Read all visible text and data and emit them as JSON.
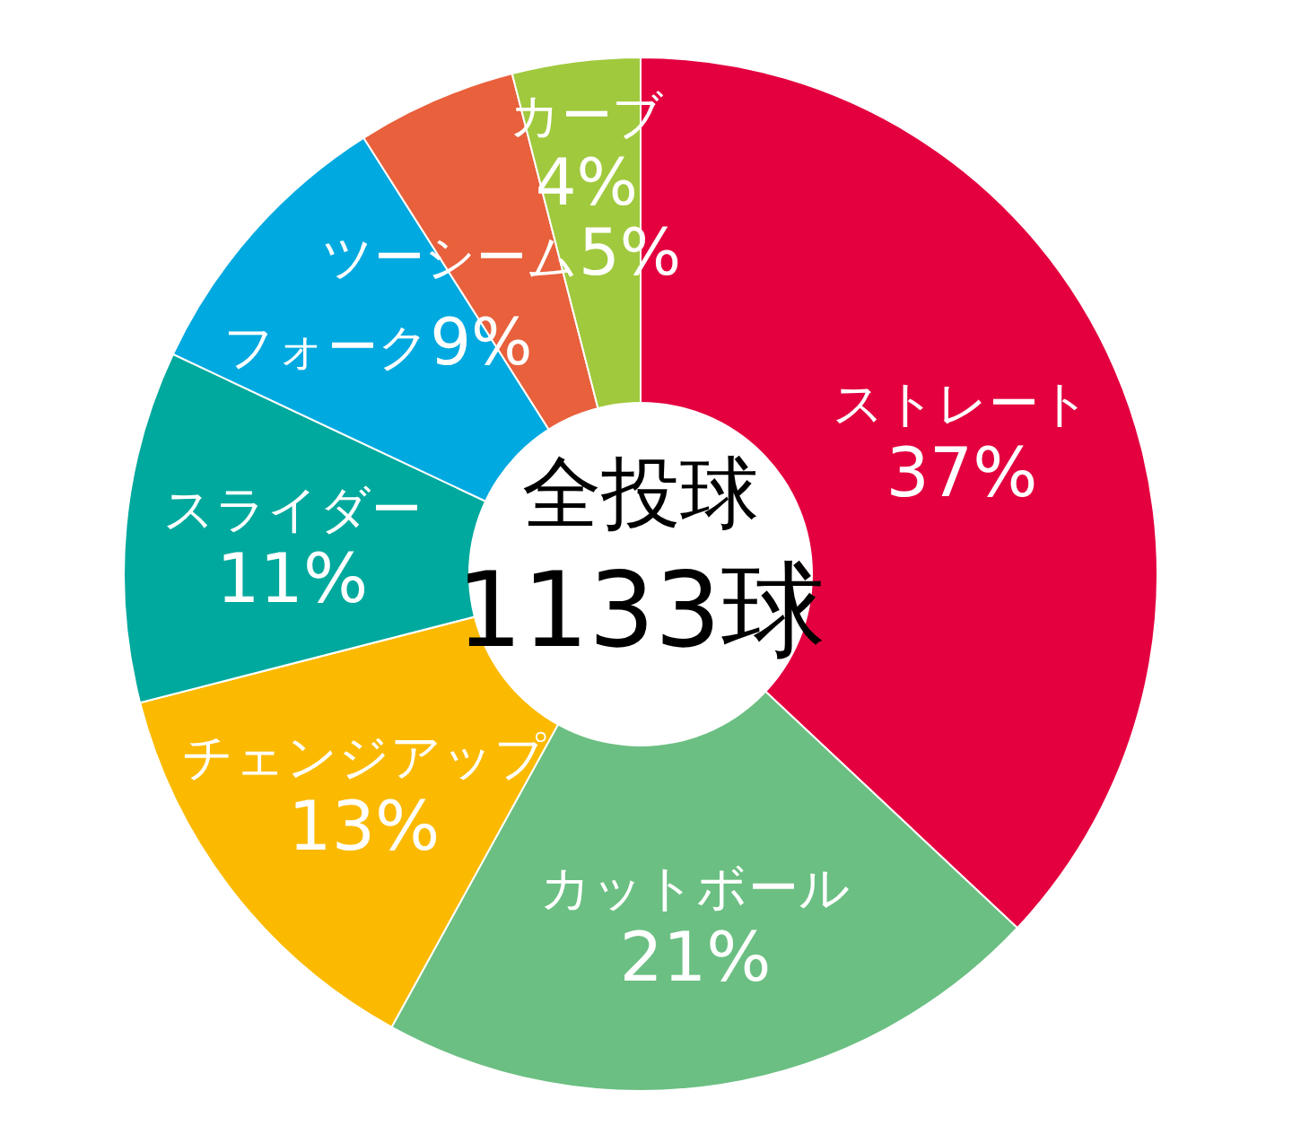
{
  "chart_data": {
    "type": "donut",
    "categories": [
      "ストレート",
      "カットボール",
      "チェンジアップ",
      "スライダー",
      "フォーク",
      "ツーシーム",
      "カーブ"
    ],
    "values": [
      37,
      21,
      13,
      11,
      9,
      5,
      4
    ],
    "value_labels": [
      "37%",
      "21%",
      "13%",
      "11%",
      "9%",
      "5%",
      "4%"
    ],
    "colors": [
      "#e4003f",
      "#6bbf82",
      "#fbba00",
      "#00a99d",
      "#00a9e0",
      "#e8603c",
      "#a0c93d"
    ],
    "annotations": [
      "全投球",
      "1133球"
    ]
  }
}
